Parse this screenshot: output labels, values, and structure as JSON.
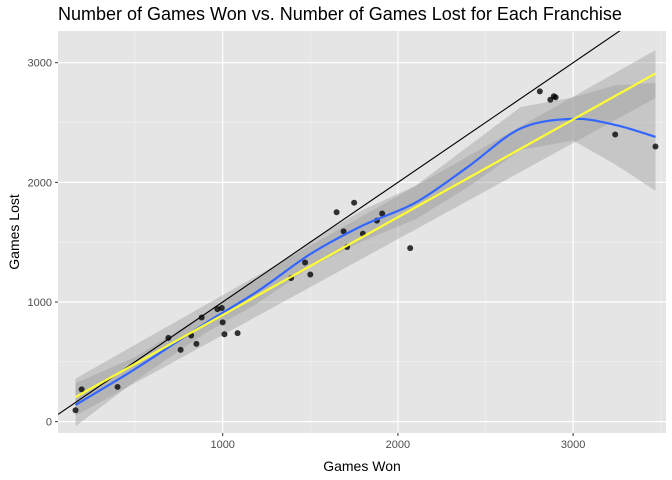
{
  "chart_data": {
    "type": "scatter",
    "title": "Number of Games Won vs. Number of Games Lost for Each Franchise",
    "xlabel": "Games Won",
    "ylabel": "Games Lost",
    "xlim": [
      60,
      3530
    ],
    "ylim": [
      -95,
      3265
    ],
    "x_ticks": [
      1000,
      2000,
      3000
    ],
    "y_ticks": [
      0,
      1000,
      2000,
      3000
    ],
    "grid": true,
    "background": "#e5e5e5",
    "points": [
      {
        "x": 160,
        "y": 95
      },
      {
        "x": 195,
        "y": 270
      },
      {
        "x": 400,
        "y": 290
      },
      {
        "x": 690,
        "y": 700
      },
      {
        "x": 760,
        "y": 600
      },
      {
        "x": 820,
        "y": 720
      },
      {
        "x": 850,
        "y": 650
      },
      {
        "x": 880,
        "y": 870
      },
      {
        "x": 970,
        "y": 940
      },
      {
        "x": 995,
        "y": 950
      },
      {
        "x": 1000,
        "y": 830
      },
      {
        "x": 1010,
        "y": 730
      },
      {
        "x": 1085,
        "y": 740
      },
      {
        "x": 1390,
        "y": 1200
      },
      {
        "x": 1470,
        "y": 1330
      },
      {
        "x": 1500,
        "y": 1230
      },
      {
        "x": 1650,
        "y": 1750
      },
      {
        "x": 1690,
        "y": 1590
      },
      {
        "x": 1710,
        "y": 1460
      },
      {
        "x": 1750,
        "y": 1830
      },
      {
        "x": 1800,
        "y": 1570
      },
      {
        "x": 1880,
        "y": 1680
      },
      {
        "x": 1910,
        "y": 1740
      },
      {
        "x": 2070,
        "y": 1450
      },
      {
        "x": 2810,
        "y": 2760
      },
      {
        "x": 2870,
        "y": 2690
      },
      {
        "x": 2890,
        "y": 2720
      },
      {
        "x": 2900,
        "y": 2710
      },
      {
        "x": 3240,
        "y": 2400
      },
      {
        "x": 3470,
        "y": 2300
      }
    ],
    "reference_line": {
      "slope": 1,
      "intercept": 0,
      "color": "#000000"
    },
    "linear_fit": {
      "color": "#ffff33",
      "x": [
        160,
        3470
      ],
      "y": [
        205,
        2910
      ],
      "ci_lower": [
        50,
        2705
      ],
      "ci_upper": [
        360,
        3105
      ]
    },
    "smooth_fit": {
      "color": "#3366ff",
      "x": [
        160,
        500,
        900,
        1200,
        1500,
        1800,
        2100,
        2400,
        2700,
        3000,
        3240,
        3470
      ],
      "y": [
        140,
        440,
        820,
        1090,
        1400,
        1640,
        1830,
        2130,
        2450,
        2530,
        2480,
        2380
      ],
      "ci_lower": [
        -40,
        340,
        740,
        990,
        1290,
        1510,
        1690,
        1960,
        2270,
        2350,
        2150,
        1930
      ],
      "ci_upper": [
        320,
        540,
        900,
        1190,
        1510,
        1770,
        1970,
        2300,
        2630,
        2710,
        2810,
        2830
      ]
    },
    "band_color": "#999999"
  }
}
